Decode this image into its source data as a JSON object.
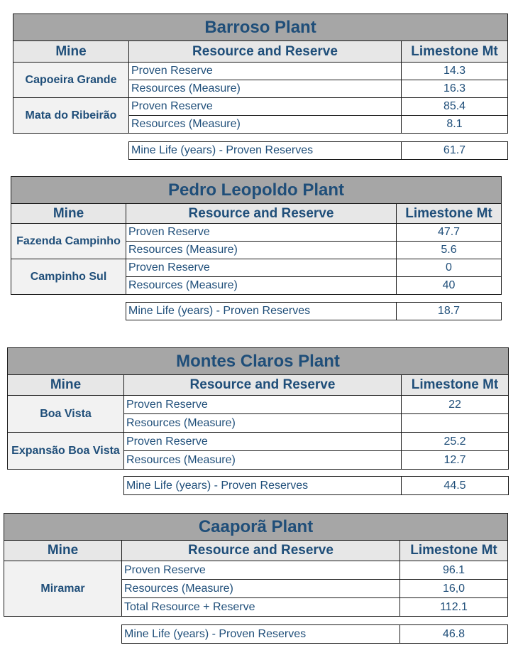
{
  "headers": {
    "mine": "Mine",
    "resource": "Resource and Reserve",
    "limestone": "Limestone Mt"
  },
  "plants": [
    {
      "title": "Barroso Plant",
      "mines": [
        {
          "name": "Capoeira Grande",
          "rows": [
            {
              "label": "Proven Reserve",
              "value": "14.3"
            },
            {
              "label": "Resources (Measure)",
              "value": "16.3"
            }
          ]
        },
        {
          "name": "Mata do Ribeirão",
          "rows": [
            {
              "label": "Proven Reserve",
              "value": "85.4"
            },
            {
              "label": "Resources (Measure)",
              "value": "8.1"
            }
          ]
        }
      ],
      "life": {
        "label": "Mine Life (years) - Proven Reserves",
        "value": "61.7"
      }
    },
    {
      "title": "Pedro Leopoldo Plant",
      "mines": [
        {
          "name": "Fazenda Campinho",
          "rows": [
            {
              "label": "Proven Reserve",
              "value": "47.7"
            },
            {
              "label": "Resources (Measure)",
              "value": "5.6"
            }
          ]
        },
        {
          "name": "Campinho Sul",
          "rows": [
            {
              "label": "Proven Reserve",
              "value": "0"
            },
            {
              "label": "Resources (Measure)",
              "value": "40"
            }
          ]
        }
      ],
      "life": {
        "label": "Mine Life (years) - Proven Reserves",
        "value": "18.7"
      }
    },
    {
      "title": "Montes Claros Plant",
      "mines": [
        {
          "name": "Boa Vista",
          "rows": [
            {
              "label": "Proven Reserve",
              "value": "22"
            },
            {
              "label": "Resources (Measure)",
              "value": ""
            }
          ]
        },
        {
          "name": "Expansão Boa Vista",
          "rows": [
            {
              "label": "Proven Reserve",
              "value": "25.2"
            },
            {
              "label": "Resources (Measure)",
              "value": "12.7"
            }
          ]
        }
      ],
      "life": {
        "label": "Mine Life (years) - Proven Reserves",
        "value": "44.5"
      }
    },
    {
      "title": "Caaporã Plant",
      "mines": [
        {
          "name": "Miramar",
          "rows": [
            {
              "label": "Proven Reserve",
              "value": "96.1"
            },
            {
              "label": "Resources (Measure)",
              "value": "16,0"
            },
            {
              "label": "Total Resource + Reserve",
              "value": "112.1"
            }
          ]
        }
      ],
      "life": {
        "label": "Mine Life (years) - Proven Reserves",
        "value": "46.8"
      }
    }
  ]
}
